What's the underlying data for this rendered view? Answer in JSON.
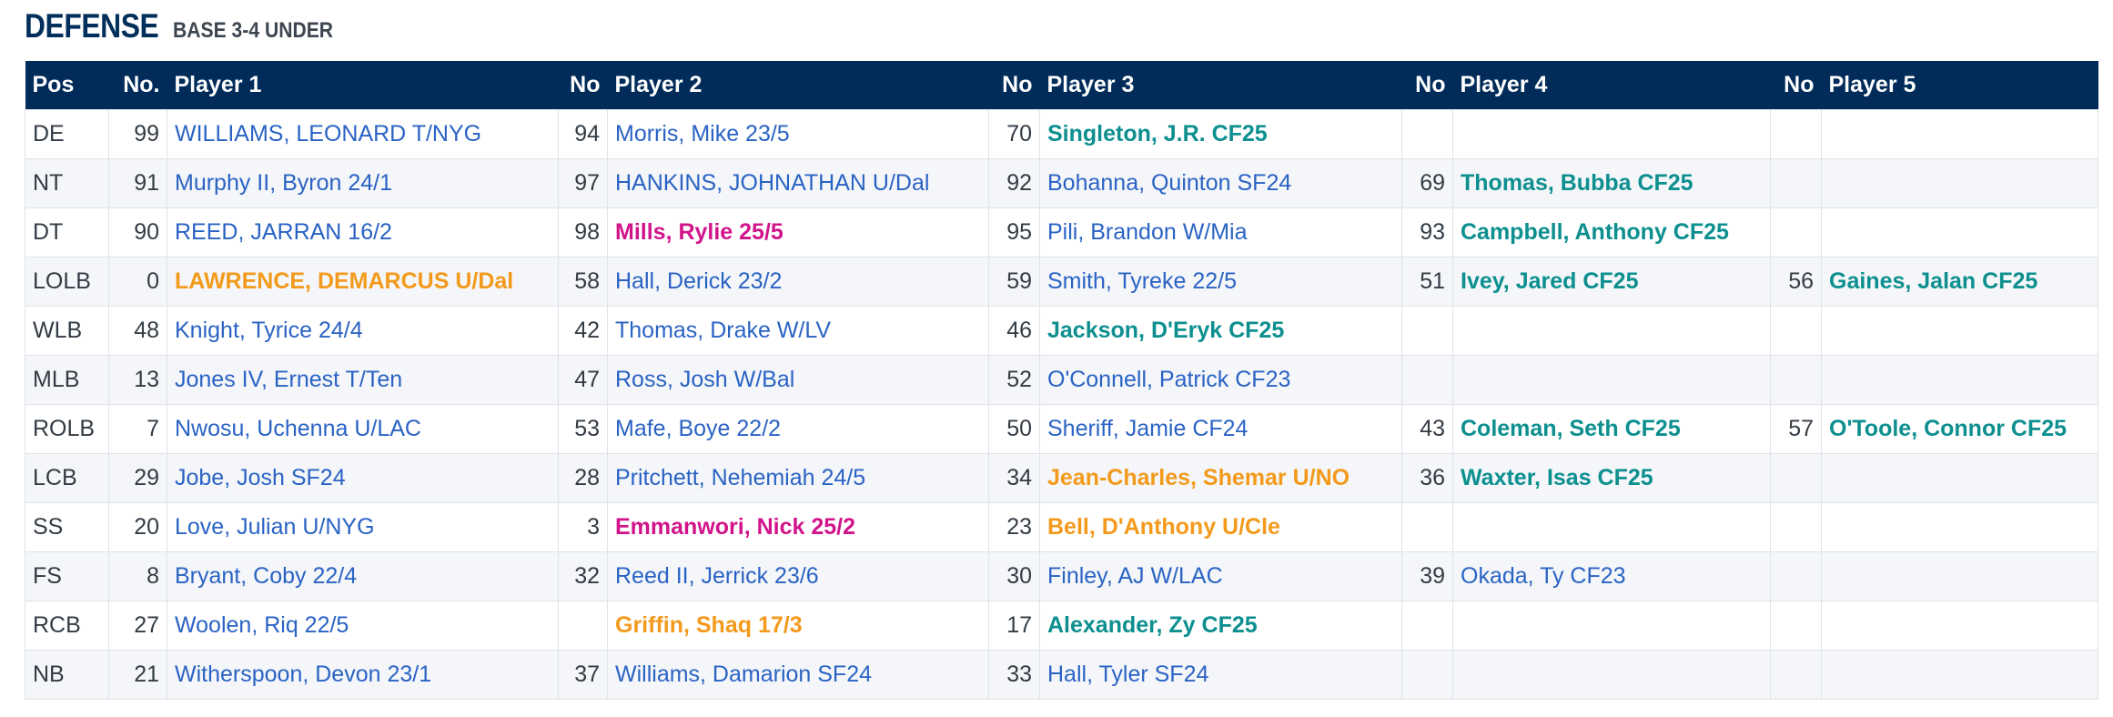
{
  "section": {
    "title": "DEFENSE",
    "subtitle": "BASE 3-4 UNDER"
  },
  "colors": {
    "header_bg": "#012c5a",
    "title": "#012f5b",
    "link": "#2a63c4",
    "teal": "#0d8f8f",
    "orange": "#f39a1c",
    "magenta": "#d2148b"
  },
  "headers": [
    "Pos",
    "No.",
    "Player 1",
    "No",
    "Player 2",
    "No",
    "Player 3",
    "No",
    "Player 4",
    "No",
    "Player 5"
  ],
  "rows": [
    {
      "pos": "DE",
      "players": [
        {
          "no": "99",
          "name": "WILLIAMS, LEONARD T/NYG",
          "style": "regular"
        },
        {
          "no": "94",
          "name": "Morris, Mike 23/5",
          "style": "regular"
        },
        {
          "no": "70",
          "name": "Singleton, J.R. CF25",
          "style": "teal"
        },
        {
          "no": "",
          "name": "",
          "style": "regular"
        },
        {
          "no": "",
          "name": "",
          "style": "regular"
        }
      ]
    },
    {
      "pos": "NT",
      "players": [
        {
          "no": "91",
          "name": "Murphy II, Byron 24/1",
          "style": "regular"
        },
        {
          "no": "97",
          "name": "HANKINS, JOHNATHAN U/Dal",
          "style": "regular"
        },
        {
          "no": "92",
          "name": "Bohanna, Quinton SF24",
          "style": "regular"
        },
        {
          "no": "69",
          "name": "Thomas, Bubba CF25",
          "style": "teal"
        },
        {
          "no": "",
          "name": "",
          "style": "regular"
        }
      ]
    },
    {
      "pos": "DT",
      "players": [
        {
          "no": "90",
          "name": "REED, JARRAN 16/2",
          "style": "regular"
        },
        {
          "no": "98",
          "name": "Mills, Rylie 25/5",
          "style": "magenta"
        },
        {
          "no": "95",
          "name": "Pili, Brandon W/Mia",
          "style": "regular"
        },
        {
          "no": "93",
          "name": "Campbell, Anthony CF25",
          "style": "teal"
        },
        {
          "no": "",
          "name": "",
          "style": "regular"
        }
      ]
    },
    {
      "pos": "LOLB",
      "players": [
        {
          "no": "0",
          "name": "LAWRENCE, DEMARCUS U/Dal",
          "style": "orange"
        },
        {
          "no": "58",
          "name": "Hall, Derick 23/2",
          "style": "regular"
        },
        {
          "no": "59",
          "name": "Smith, Tyreke 22/5",
          "style": "regular"
        },
        {
          "no": "51",
          "name": "Ivey, Jared CF25",
          "style": "teal"
        },
        {
          "no": "56",
          "name": "Gaines, Jalan CF25",
          "style": "teal"
        }
      ]
    },
    {
      "pos": "WLB",
      "players": [
        {
          "no": "48",
          "name": "Knight, Tyrice 24/4",
          "style": "regular"
        },
        {
          "no": "42",
          "name": "Thomas, Drake W/LV",
          "style": "regular"
        },
        {
          "no": "46",
          "name": "Jackson, D'Eryk CF25",
          "style": "teal"
        },
        {
          "no": "",
          "name": "",
          "style": "regular"
        },
        {
          "no": "",
          "name": "",
          "style": "regular"
        }
      ]
    },
    {
      "pos": "MLB",
      "players": [
        {
          "no": "13",
          "name": "Jones IV, Ernest T/Ten",
          "style": "regular"
        },
        {
          "no": "47",
          "name": "Ross, Josh W/Bal",
          "style": "regular"
        },
        {
          "no": "52",
          "name": "O'Connell, Patrick CF23",
          "style": "regular"
        },
        {
          "no": "",
          "name": "",
          "style": "regular"
        },
        {
          "no": "",
          "name": "",
          "style": "regular"
        }
      ]
    },
    {
      "pos": "ROLB",
      "players": [
        {
          "no": "7",
          "name": "Nwosu, Uchenna U/LAC",
          "style": "regular"
        },
        {
          "no": "53",
          "name": "Mafe, Boye 22/2",
          "style": "regular"
        },
        {
          "no": "50",
          "name": "Sheriff, Jamie CF24",
          "style": "regular"
        },
        {
          "no": "43",
          "name": "Coleman, Seth CF25",
          "style": "teal"
        },
        {
          "no": "57",
          "name": "O'Toole, Connor CF25",
          "style": "teal"
        }
      ]
    },
    {
      "pos": "LCB",
      "players": [
        {
          "no": "29",
          "name": "Jobe, Josh SF24",
          "style": "regular"
        },
        {
          "no": "28",
          "name": "Pritchett, Nehemiah 24/5",
          "style": "regular"
        },
        {
          "no": "34",
          "name": "Jean-Charles, Shemar U/NO",
          "style": "orange"
        },
        {
          "no": "36",
          "name": "Waxter, Isas CF25",
          "style": "teal"
        },
        {
          "no": "",
          "name": "",
          "style": "regular"
        }
      ]
    },
    {
      "pos": "SS",
      "players": [
        {
          "no": "20",
          "name": "Love, Julian U/NYG",
          "style": "regular"
        },
        {
          "no": "3",
          "name": "Emmanwori, Nick 25/2",
          "style": "magenta"
        },
        {
          "no": "23",
          "name": "Bell, D'Anthony U/Cle",
          "style": "orange"
        },
        {
          "no": "",
          "name": "",
          "style": "regular"
        },
        {
          "no": "",
          "name": "",
          "style": "regular"
        }
      ]
    },
    {
      "pos": "FS",
      "players": [
        {
          "no": "8",
          "name": "Bryant, Coby 22/4",
          "style": "regular"
        },
        {
          "no": "32",
          "name": "Reed II, Jerrick 23/6",
          "style": "regular"
        },
        {
          "no": "30",
          "name": "Finley, AJ W/LAC",
          "style": "regular"
        },
        {
          "no": "39",
          "name": "Okada, Ty CF23",
          "style": "regular"
        },
        {
          "no": "",
          "name": "",
          "style": "regular"
        }
      ]
    },
    {
      "pos": "RCB",
      "players": [
        {
          "no": "27",
          "name": "Woolen, Riq 22/5",
          "style": "regular"
        },
        {
          "no": "",
          "name": "Griffin, Shaq 17/3",
          "style": "orange"
        },
        {
          "no": "17",
          "name": "Alexander, Zy CF25",
          "style": "teal"
        },
        {
          "no": "",
          "name": "",
          "style": "regular"
        },
        {
          "no": "",
          "name": "",
          "style": "regular"
        }
      ]
    },
    {
      "pos": "NB",
      "players": [
        {
          "no": "21",
          "name": "Witherspoon, Devon 23/1",
          "style": "regular"
        },
        {
          "no": "37",
          "name": "Williams, Damarion SF24",
          "style": "regular"
        },
        {
          "no": "33",
          "name": "Hall, Tyler SF24",
          "style": "regular"
        },
        {
          "no": "",
          "name": "",
          "style": "regular"
        },
        {
          "no": "",
          "name": "",
          "style": "regular"
        }
      ]
    }
  ]
}
